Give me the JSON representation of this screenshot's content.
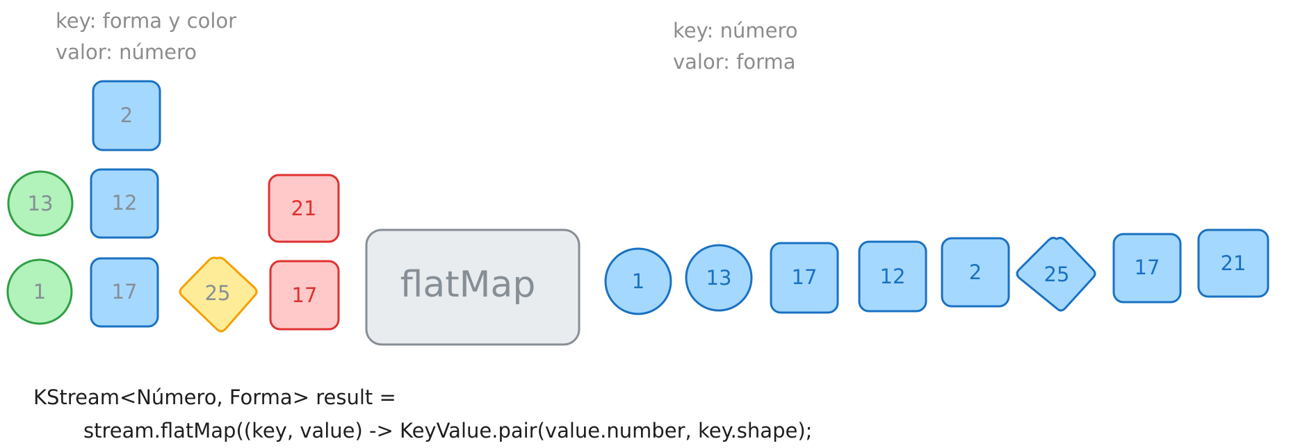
{
  "input_note": {
    "line1": "key: forma y color",
    "line2": "valor: número"
  },
  "output_note": {
    "line1": "key: número",
    "line2": "valor: forma"
  },
  "input_shapes": [
    {
      "label": "2",
      "shape": "square",
      "color": "blue"
    },
    {
      "label": "13",
      "shape": "circle",
      "color": "green"
    },
    {
      "label": "12",
      "shape": "square",
      "color": "blue"
    },
    {
      "label": "21",
      "shape": "square",
      "color": "red"
    },
    {
      "label": "1",
      "shape": "circle",
      "color": "green"
    },
    {
      "label": "17",
      "shape": "square",
      "color": "blue"
    },
    {
      "label": "25",
      "shape": "diamond",
      "color": "yellow"
    },
    {
      "label": "17",
      "shape": "square",
      "color": "red"
    }
  ],
  "operator": {
    "label": "flatMap"
  },
  "output_shapes": [
    {
      "label": "1",
      "shape": "circle"
    },
    {
      "label": "13",
      "shape": "circle"
    },
    {
      "label": "17",
      "shape": "square"
    },
    {
      "label": "12",
      "shape": "square"
    },
    {
      "label": "2",
      "shape": "square"
    },
    {
      "label": "25",
      "shape": "diamond"
    },
    {
      "label": "17",
      "shape": "square"
    },
    {
      "label": "21",
      "shape": "square"
    }
  ],
  "code": {
    "line1": "KStream<Número, Forma> result =",
    "line2": "stream.flatMap((key, value) -> KeyValue.pair(value.number, key.shape);"
  },
  "colors": {
    "blue_fill": "#a5d8ff",
    "blue_stroke": "#1971c2",
    "green_fill": "#b2f2bb",
    "green_stroke": "#2f9e44",
    "red_fill": "#ffc9c9",
    "red_stroke": "#e03131",
    "yellow_fill": "#ffec99",
    "yellow_stroke": "#f59f00",
    "grey_fill": "#e9ecef",
    "grey_stroke": "#868e96",
    "input_text": "#868e96",
    "output_text": "#1971c2",
    "red_text": "#e03131"
  }
}
